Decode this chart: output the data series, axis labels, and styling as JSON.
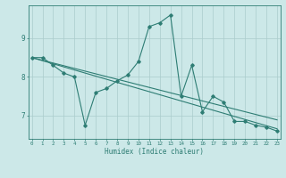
{
  "title": "",
  "xlabel": "Humidex (Indice chaleur)",
  "x_values": [
    0,
    1,
    2,
    3,
    4,
    5,
    6,
    7,
    8,
    9,
    10,
    11,
    12,
    13,
    14,
    15,
    16,
    17,
    18,
    19,
    20,
    21,
    22,
    23
  ],
  "line1_y": [
    8.5,
    8.5,
    8.3,
    8.1,
    8.0,
    6.75,
    7.6,
    7.7,
    7.9,
    8.05,
    8.4,
    9.3,
    9.4,
    9.6,
    7.5,
    8.3,
    7.1,
    7.5,
    7.35,
    6.85,
    6.85,
    6.75,
    6.7,
    6.6
  ],
  "line2_y": [
    8.5,
    8.42,
    8.34,
    8.26,
    8.18,
    8.1,
    8.02,
    7.94,
    7.86,
    7.78,
    7.7,
    7.62,
    7.54,
    7.46,
    7.38,
    7.3,
    7.22,
    7.14,
    7.06,
    6.98,
    6.9,
    6.82,
    6.74,
    6.66
  ],
  "line3_y": [
    8.5,
    8.43,
    8.36,
    8.29,
    8.22,
    8.15,
    8.08,
    8.01,
    7.94,
    7.87,
    7.8,
    7.73,
    7.66,
    7.59,
    7.52,
    7.45,
    7.38,
    7.31,
    7.24,
    7.17,
    7.1,
    7.03,
    6.96,
    6.89
  ],
  "line_color": "#2e7d74",
  "bg_color": "#cce8e8",
  "grid_color": "#aacccc",
  "yticks": [
    7,
    8,
    9
  ],
  "ylim": [
    6.4,
    9.85
  ],
  "xlim": [
    -0.3,
    23.3
  ]
}
